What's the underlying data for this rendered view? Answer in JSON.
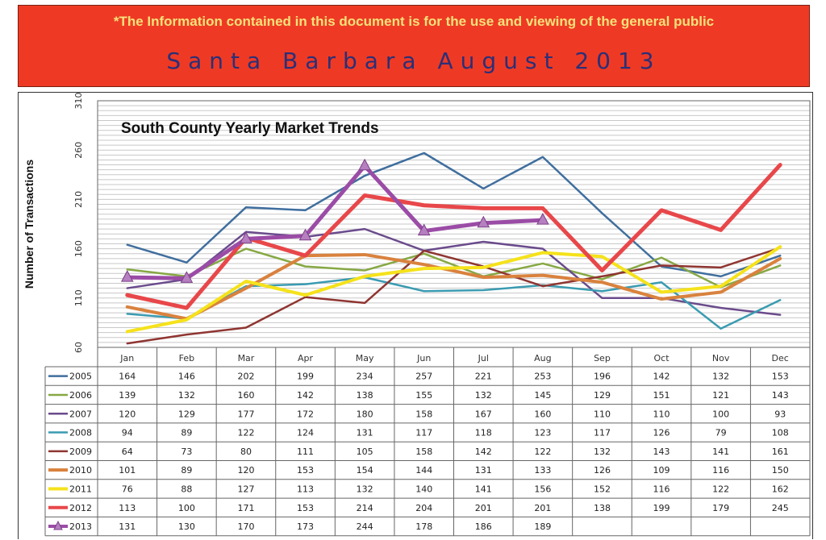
{
  "header": {
    "note": "*The Information contained in this document is for the use and viewing of the general public",
    "title": "Santa Barbara August 2013"
  },
  "chart_data": {
    "type": "line",
    "title": "South County Yearly Market Trends",
    "ylabel": "Number of Transactions",
    "xlabel": "",
    "ylim": [
      60,
      310
    ],
    "yticks": [
      60,
      110,
      160,
      210,
      260,
      310
    ],
    "grid": true,
    "legend": "table-below",
    "categories": [
      "Jan",
      "Feb",
      "Mar",
      "Apr",
      "May",
      "Jun",
      "Jul",
      "Aug",
      "Sep",
      "Oct",
      "Nov",
      "Dec"
    ],
    "series": [
      {
        "name": "2005",
        "color": "#3f6e9e",
        "values": [
          164,
          146,
          202,
          199,
          234,
          257,
          221,
          253,
          196,
          142,
          132,
          153
        ]
      },
      {
        "name": "2006",
        "color": "#86a843",
        "values": [
          139,
          132,
          160,
          142,
          138,
          155,
          132,
          145,
          129,
          151,
          121,
          143
        ]
      },
      {
        "name": "2007",
        "color": "#6a4b8c",
        "values": [
          120,
          129,
          177,
          172,
          180,
          158,
          167,
          160,
          110,
          110,
          100,
          93
        ]
      },
      {
        "name": "2008",
        "color": "#3a9bb1",
        "values": [
          94,
          89,
          122,
          124,
          131,
          117,
          118,
          123,
          117,
          126,
          79,
          108
        ]
      },
      {
        "name": "2009",
        "color": "#8f3531",
        "values": [
          64,
          73,
          80,
          111,
          105,
          158,
          142,
          122,
          132,
          143,
          141,
          161
        ]
      },
      {
        "name": "2010",
        "color": "#d9823e",
        "values": [
          101,
          89,
          120,
          153,
          154,
          144,
          131,
          133,
          126,
          109,
          116,
          150
        ]
      },
      {
        "name": "2011",
        "color": "#f5e21b",
        "values": [
          76,
          88,
          127,
          113,
          132,
          140,
          141,
          156,
          152,
          116,
          122,
          162
        ]
      },
      {
        "name": "2012",
        "color": "#e8474a",
        "values": [
          113,
          100,
          171,
          153,
          214,
          204,
          201,
          201,
          138,
          199,
          179,
          245
        ]
      },
      {
        "name": "2013",
        "color": "#9b4ca6",
        "values": [
          131,
          130,
          170,
          173,
          244,
          178,
          186,
          189,
          null,
          null,
          null,
          null
        ]
      }
    ]
  }
}
